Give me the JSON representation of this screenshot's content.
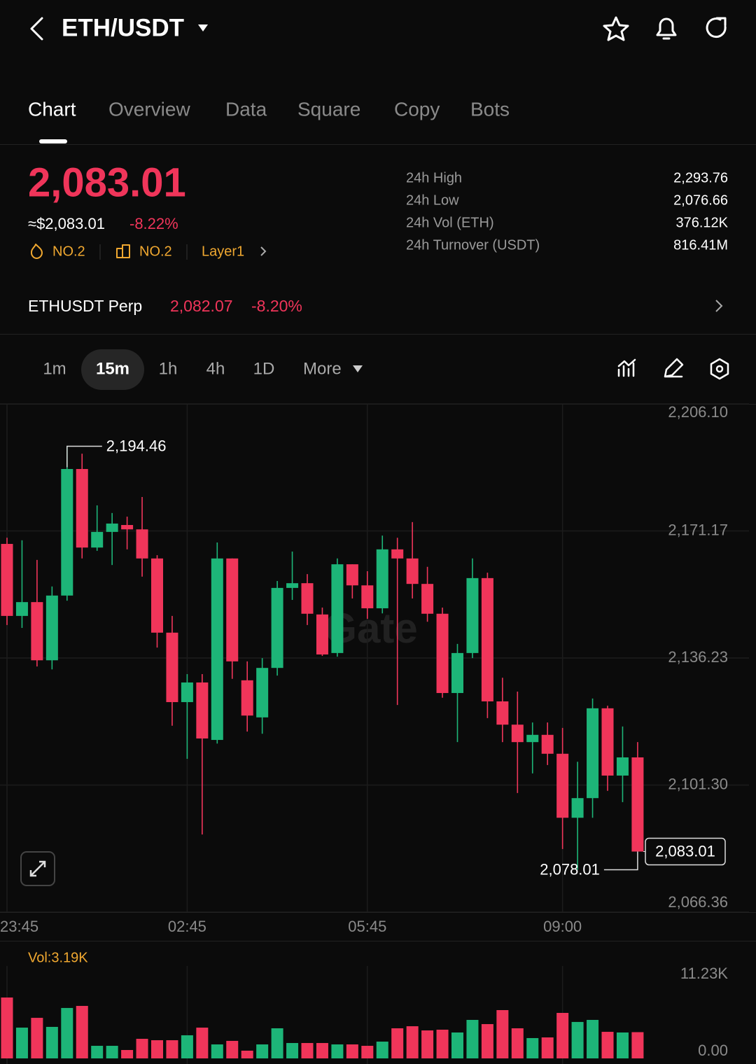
{
  "header": {
    "title": "ETH/USDT"
  },
  "tabs": {
    "items": [
      "Chart",
      "Overview",
      "Data",
      "Square",
      "Copy",
      "Bots"
    ],
    "active": 0
  },
  "ticker": {
    "price": "2,083.01",
    "usd_price": "≈$2,083.01",
    "change": "-8.22%",
    "badges": [
      "NO.2",
      "NO.2",
      "Layer1"
    ]
  },
  "stats": [
    {
      "label": "24h  High",
      "value": "2,293.76"
    },
    {
      "label": "24h  Low",
      "value": "2,076.66"
    },
    {
      "label": "24h  Vol (ETH)",
      "value": "376.12K"
    },
    {
      "label": "24h  Turnover (USDT)",
      "value": "816.41M"
    }
  ],
  "perp": {
    "name": "ETHUSDT Perp",
    "price": "2,082.07",
    "change": "-8.20%"
  },
  "intervals": {
    "items": [
      "1m",
      "15m",
      "1h",
      "4h",
      "1D",
      "More"
    ],
    "active": 1
  },
  "chart_data": [
    {
      "type": "candlestick",
      "watermark": "Gate",
      "up_color": "#1db578",
      "down_color": "#f0355a",
      "categories": [
        "23:45",
        null,
        null,
        null,
        null,
        null,
        null,
        null,
        null,
        null,
        null,
        null,
        "02:45",
        null,
        null,
        null,
        null,
        null,
        null,
        null,
        null,
        null,
        null,
        null,
        "05:45",
        null,
        null,
        null,
        null,
        null,
        null,
        null,
        null,
        null,
        null,
        null,
        null,
        "09:00",
        null,
        null,
        null,
        null,
        null
      ],
      "open": [
        2167.6,
        2147.8,
        2151.6,
        2135.6,
        2153.4,
        2188.2,
        2166.6,
        2170.9,
        2172.8,
        2171.6,
        2163.6,
        2143.2,
        2124.1,
        2129.5,
        2113.7,
        2163.6,
        2130.1,
        2119.9,
        2133.5,
        2155.5,
        2156.8,
        2148.2,
        2137.6,
        2162.0,
        2156.2,
        2149.9,
        2166.1,
        2163.6,
        2156.6,
        2148.4,
        2126.6,
        2137.6,
        2158.2,
        2124.3,
        2117.9,
        2113.1,
        2115.1,
        2109.9,
        2092.3,
        2097.7,
        2122.4,
        2103.9,
        2108.9
      ],
      "high": [
        2169.3,
        2168.6,
        2163.2,
        2155.9,
        2194.46,
        2192.4,
        2178.2,
        2176.1,
        2175.1,
        2180.5,
        2164.5,
        2147.8,
        2131.8,
        2131.8,
        2168.0,
        2163.6,
        2135.3,
        2136.2,
        2157.4,
        2165.5,
        2159.3,
        2150.1,
        2163.6,
        2162.0,
        2160.1,
        2169.9,
        2169.3,
        2173.6,
        2161.3,
        2150.1,
        2140.1,
        2163.6,
        2159.7,
        2130.8,
        2127.0,
        2118.5,
        2118.5,
        2117.0,
        2107.7,
        2125.1,
        2123.1,
        2117.4,
        2113.1
      ],
      "low": [
        2145.3,
        2144.5,
        2133.9,
        2133.1,
        2152.0,
        2163.6,
        2165.7,
        2161.8,
        2166.1,
        2158.6,
        2139.1,
        2117.6,
        2108.5,
        2087.7,
        2112.7,
        2130.5,
        2116.0,
        2115.4,
        2131.4,
        2152.2,
        2145.3,
        2136.8,
        2136.6,
        2152.6,
        2147.0,
        2148.5,
        2123.3,
        2152.6,
        2146.2,
        2125.3,
        2113.1,
        2136.2,
        2119.7,
        2113.1,
        2099.1,
        2104.5,
        2106.8,
        2083.7,
        2078.01,
        2092.3,
        2099.7,
        2096.6,
        2083.01
      ],
      "close": [
        2147.8,
        2151.6,
        2135.6,
        2153.4,
        2188.2,
        2166.6,
        2170.9,
        2173.2,
        2171.6,
        2163.6,
        2143.2,
        2124.1,
        2129.5,
        2114.1,
        2163.6,
        2135.3,
        2120.4,
        2133.5,
        2155.5,
        2156.8,
        2148.4,
        2137.2,
        2162.0,
        2156.2,
        2149.9,
        2166.1,
        2163.6,
        2156.6,
        2148.4,
        2126.6,
        2137.6,
        2158.2,
        2124.3,
        2117.9,
        2113.1,
        2115.1,
        2109.9,
        2092.3,
        2097.7,
        2122.4,
        2103.9,
        2108.9,
        2083.01
      ],
      "ylim": [
        2066.36,
        2206.1
      ],
      "yticks": [
        {
          "value": 2206.1,
          "label": "2,206.10"
        },
        {
          "value": 2171.17,
          "label": "2,171.17"
        },
        {
          "value": 2136.23,
          "label": "2,136.23"
        },
        {
          "value": 2101.3,
          "label": "2,101.30"
        },
        {
          "value": 2066.36,
          "label": "2,066.36"
        }
      ],
      "annotations": [
        {
          "value": 2194.46,
          "label": "2,194.46"
        },
        {
          "value": 2078.01,
          "label": "2,078.01"
        }
      ],
      "last_price": {
        "value": 2083.01,
        "label": "2,083.01"
      },
      "grid": true
    },
    {
      "type": "bar",
      "current_label": "Vol:3.19K",
      "values": [
        7400,
        3740,
        4930,
        3830,
        6130,
        6380,
        1530,
        1530,
        1020,
        2380,
        2210,
        2210,
        2810,
        3740,
        1700,
        2130,
        940,
        1700,
        3660,
        1870,
        1870,
        1870,
        1700,
        1700,
        1530,
        2040,
        3660,
        3910,
        3400,
        3490,
        3150,
        4680,
        4170,
        5870,
        3660,
        2470,
        2550,
        5530,
        4430,
        4680,
        3230,
        3150,
        3190
      ],
      "ylim": [
        0,
        11230
      ],
      "yticks": [
        {
          "value": 0,
          "label": "0.00"
        },
        {
          "value": 11230,
          "label": "11.23K"
        }
      ]
    }
  ]
}
